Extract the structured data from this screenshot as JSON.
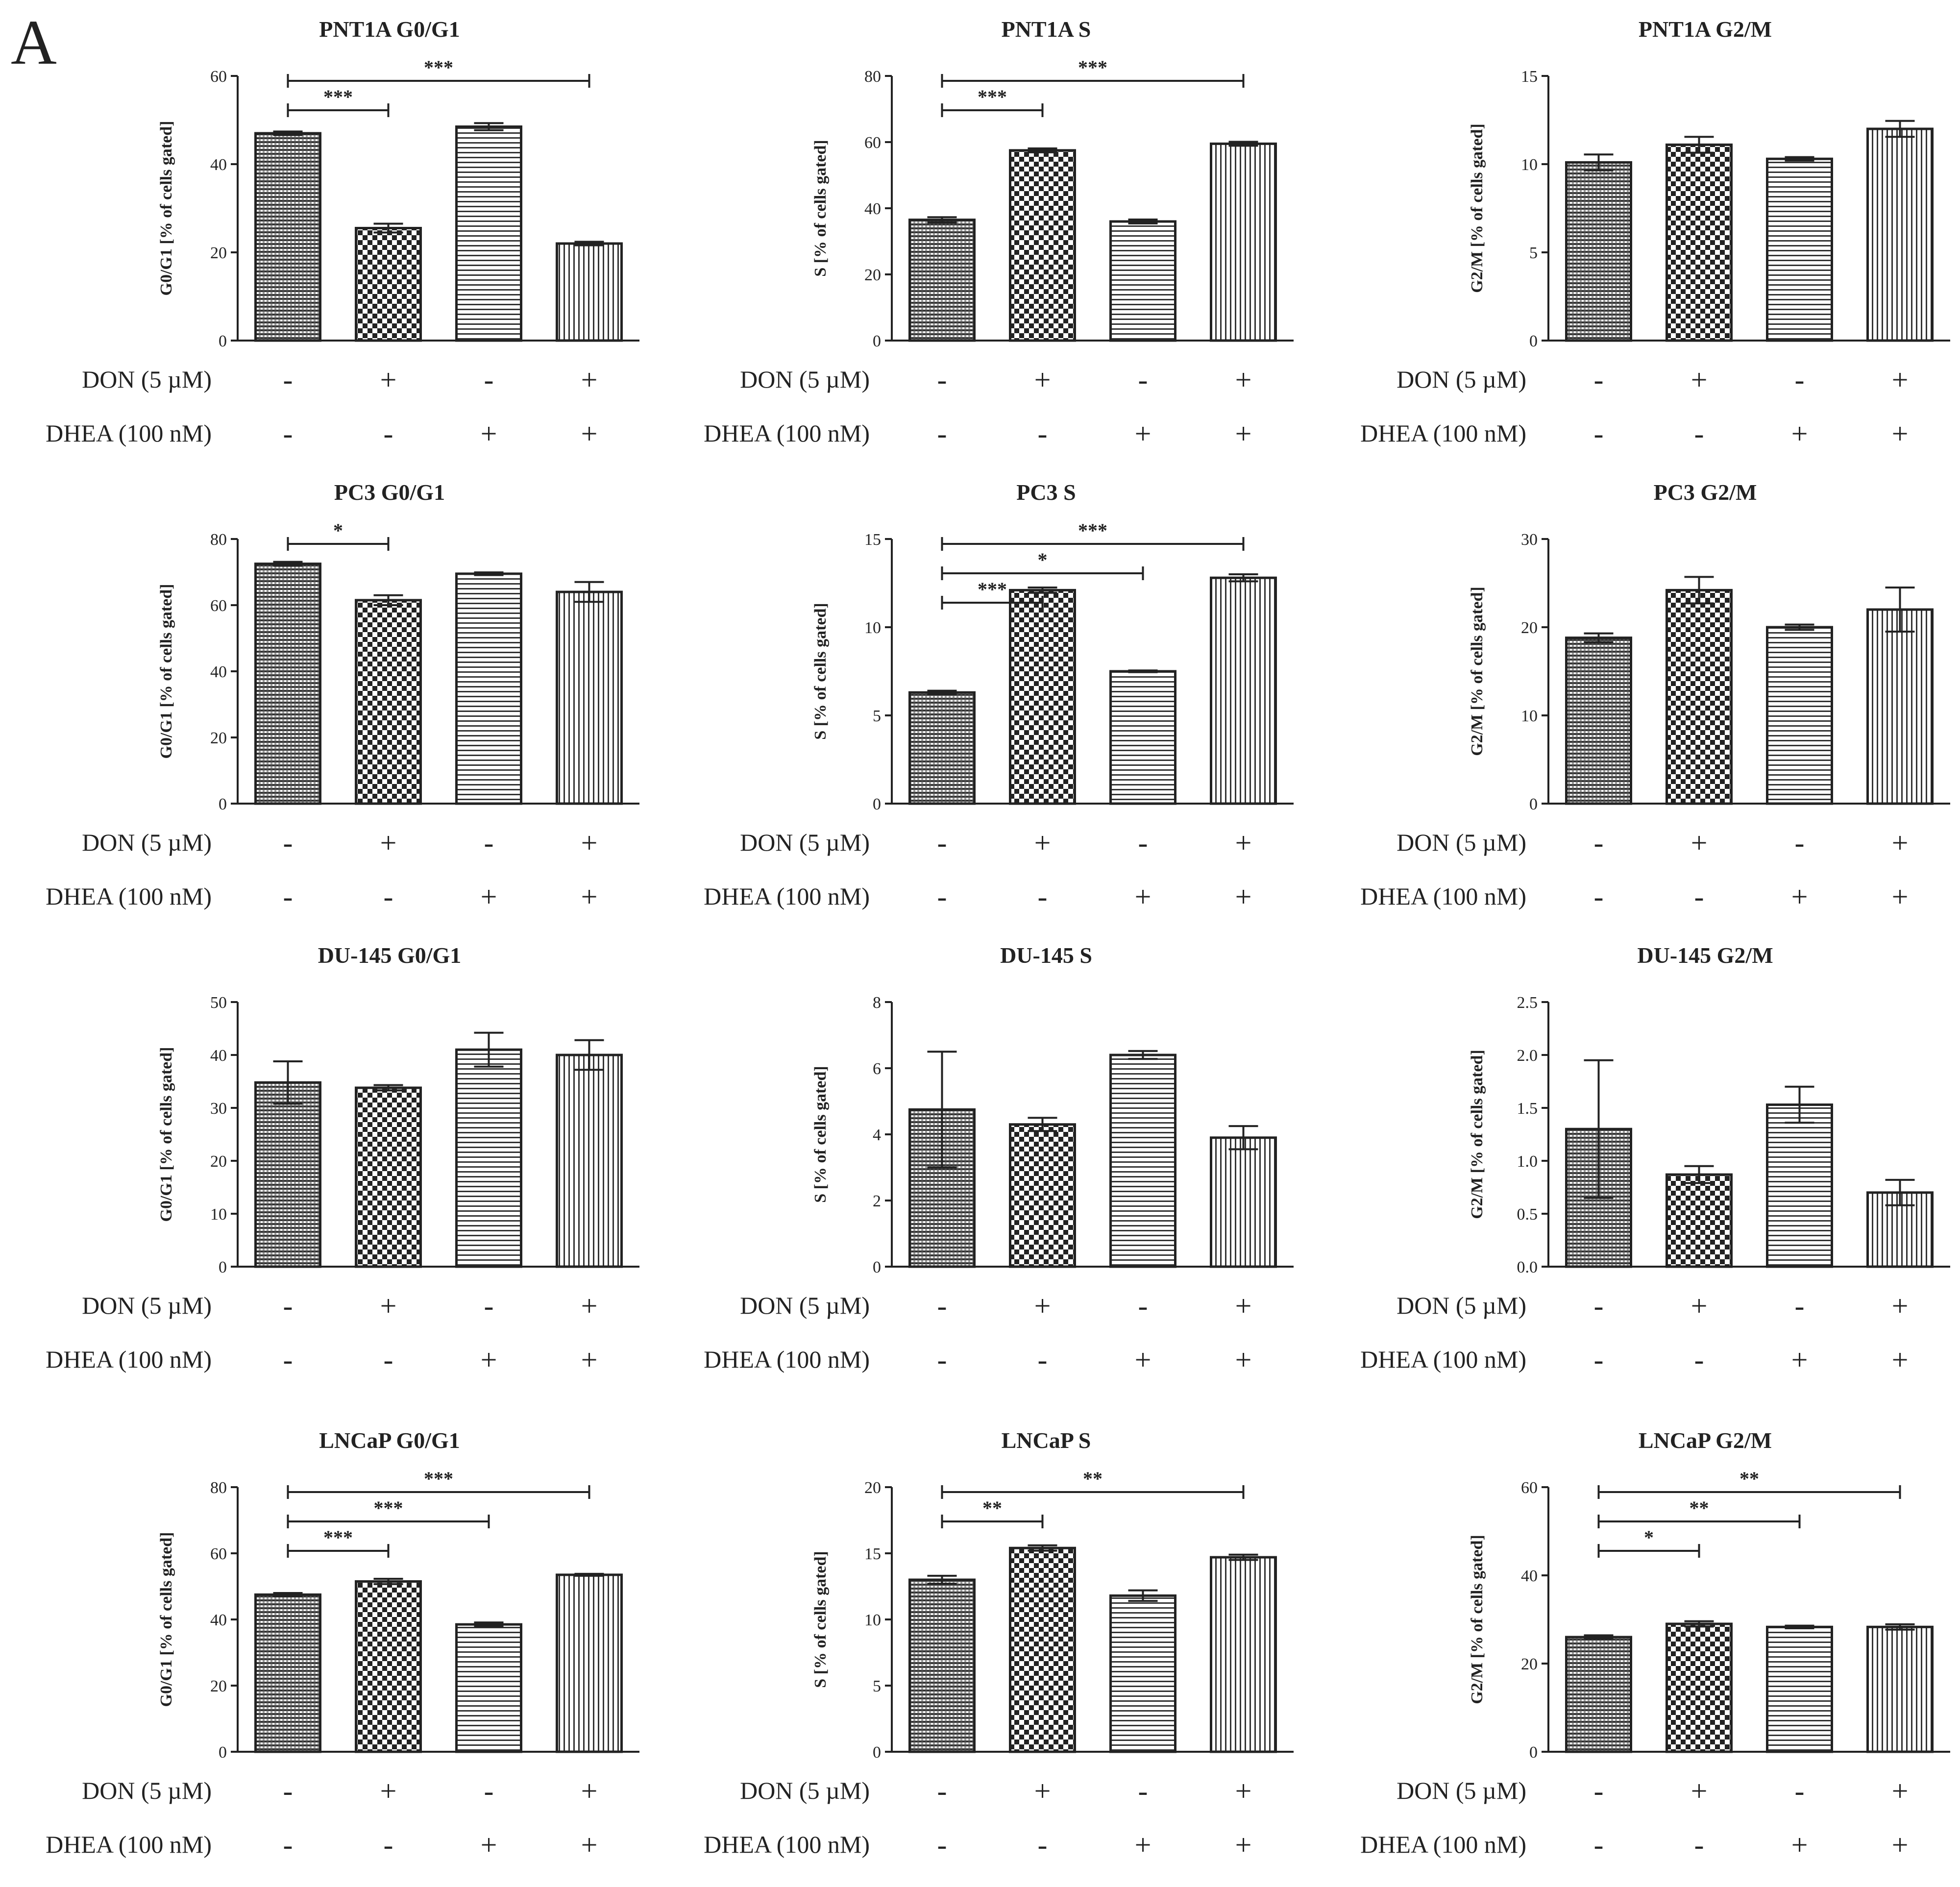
{
  "figure": {
    "panel_label": "A",
    "colors": {
      "ink": "#222222",
      "background": "#ffffff"
    }
  },
  "chart_data": [
    {
      "id": "pnt1a-g0g1",
      "type": "bar",
      "title": "PNT1A G0/G1",
      "ylabel": "G0/G1 [% of cells gated]",
      "ylim": [
        0,
        60
      ],
      "yticks": [
        "0",
        "20",
        "40",
        "60"
      ],
      "values": [
        47,
        25.5,
        48.5,
        22
      ],
      "errors": [
        0.4,
        1,
        0.8,
        0.4
      ],
      "row_labels": [
        "DON (5 µM)",
        "DHEA (100 nM)"
      ],
      "treatments": [
        [
          "-",
          "-"
        ],
        [
          "+",
          "-"
        ],
        [
          "-",
          "+"
        ],
        [
          "+",
          "+"
        ]
      ],
      "brackets": [
        {
          "from": 0,
          "to": 1,
          "label": "***"
        },
        {
          "from": 0,
          "to": 3,
          "label": "***"
        }
      ]
    },
    {
      "id": "pnt1a-s",
      "type": "bar",
      "title": "PNT1A S",
      "ylabel": "S [% of cells gated]",
      "ylim": [
        0,
        80
      ],
      "yticks": [
        "0",
        "20",
        "40",
        "60",
        "80"
      ],
      "values": [
        36.5,
        57.5,
        36,
        59.5
      ],
      "errors": [
        0.8,
        0.6,
        0.6,
        0.6
      ],
      "row_labels": [
        "DON (5 µM)",
        "DHEA (100 nM)"
      ],
      "treatments": [
        [
          "-",
          "-"
        ],
        [
          "+",
          "-"
        ],
        [
          "-",
          "+"
        ],
        [
          "+",
          "+"
        ]
      ],
      "brackets": [
        {
          "from": 0,
          "to": 1,
          "label": "***"
        },
        {
          "from": 0,
          "to": 3,
          "label": "***"
        }
      ]
    },
    {
      "id": "pnt1a-g2m",
      "type": "bar",
      "title": "PNT1A G2/M",
      "ylabel": "G2/M [% of cells gated]",
      "ylim": [
        0,
        15
      ],
      "yticks": [
        "0",
        "5",
        "10",
        "15"
      ],
      "values": [
        10.1,
        11.1,
        10.3,
        12
      ],
      "errors": [
        0.45,
        0.45,
        0.1,
        0.45
      ],
      "row_labels": [
        "DON (5 µM)",
        "DHEA (100 nM)"
      ],
      "treatments": [
        [
          "-",
          "-"
        ],
        [
          "+",
          "-"
        ],
        [
          "-",
          "+"
        ],
        [
          "+",
          "+"
        ]
      ],
      "brackets": []
    },
    {
      "id": "pc3-g0g1",
      "type": "bar",
      "title": "PC3 G0/G1",
      "ylabel": "G0/G1 [% of cells gated]",
      "ylim": [
        0,
        80
      ],
      "yticks": [
        "0",
        "20",
        "40",
        "60",
        "80"
      ],
      "values": [
        72.5,
        61.5,
        69.5,
        64
      ],
      "errors": [
        0.6,
        1.5,
        0.4,
        3
      ],
      "row_labels": [
        "DON (5 µM)",
        "DHEA (100 nM)"
      ],
      "treatments": [
        [
          "-",
          "-"
        ],
        [
          "+",
          "-"
        ],
        [
          "-",
          "+"
        ],
        [
          "+",
          "+"
        ]
      ],
      "brackets": [
        {
          "from": 0,
          "to": 1,
          "label": "*"
        }
      ]
    },
    {
      "id": "pc3-s",
      "type": "bar",
      "title": "PC3 S",
      "ylabel": "S [% of cells gated]",
      "ylim": [
        0,
        15
      ],
      "yticks": [
        "0",
        "5",
        "10",
        "15"
      ],
      "values": [
        6.3,
        12.1,
        7.5,
        12.8
      ],
      "errors": [
        0.1,
        0.15,
        0.05,
        0.2
      ],
      "row_labels": [
        "DON (5 µM)",
        "DHEA (100 nM)"
      ],
      "treatments": [
        [
          "-",
          "-"
        ],
        [
          "+",
          "-"
        ],
        [
          "-",
          "+"
        ],
        [
          "+",
          "+"
        ]
      ],
      "brackets": [
        {
          "from": 0,
          "to": 1,
          "label": "***"
        },
        {
          "from": 0,
          "to": 2,
          "label": "*"
        },
        {
          "from": 0,
          "to": 3,
          "label": "***"
        }
      ]
    },
    {
      "id": "pc3-g2m",
      "type": "bar",
      "title": "PC3 G2/M",
      "ylabel": "G2/M [% of cells gated]",
      "ylim": [
        0,
        30
      ],
      "yticks": [
        "0",
        "10",
        "20",
        "30"
      ],
      "values": [
        18.8,
        24.2,
        20,
        22
      ],
      "errors": [
        0.5,
        1.5,
        0.3,
        2.5
      ],
      "row_labels": [
        "DON (5 µM)",
        "DHEA (100 nM)"
      ],
      "treatments": [
        [
          "-",
          "-"
        ],
        [
          "+",
          "-"
        ],
        [
          "-",
          "+"
        ],
        [
          "+",
          "+"
        ]
      ],
      "brackets": []
    },
    {
      "id": "du145-g0g1",
      "type": "bar",
      "title": "DU-145 G0/G1",
      "ylabel": "G0/G1 [% of cells gated]",
      "ylim": [
        0,
        50
      ],
      "yticks": [
        "0",
        "10",
        "20",
        "30",
        "40",
        "50"
      ],
      "values": [
        34.8,
        33.8,
        41,
        40
      ],
      "errors": [
        4,
        0.5,
        3.2,
        2.8
      ],
      "row_labels": [
        "DON (5 µM)",
        "DHEA (100 nM)"
      ],
      "treatments": [
        [
          "-",
          "-"
        ],
        [
          "+",
          "-"
        ],
        [
          "-",
          "+"
        ],
        [
          "+",
          "+"
        ]
      ],
      "brackets": []
    },
    {
      "id": "du145-s",
      "type": "bar",
      "title": "DU-145 S",
      "ylabel": "S [% of cells gated]",
      "ylim": [
        0,
        8
      ],
      "yticks": [
        "0",
        "2",
        "4",
        "6",
        "8"
      ],
      "values": [
        4.75,
        4.3,
        6.4,
        3.9
      ],
      "errors": [
        1.75,
        0.2,
        0.12,
        0.35
      ],
      "row_labels": [
        "DON (5 µM)",
        "DHEA (100 nM)"
      ],
      "treatments": [
        [
          "-",
          "-"
        ],
        [
          "+",
          "-"
        ],
        [
          "-",
          "+"
        ],
        [
          "+",
          "+"
        ]
      ],
      "brackets": []
    },
    {
      "id": "du145-g2m",
      "type": "bar",
      "title": "DU-145 G2/M",
      "ylabel": "G2/M [% of cells gated]",
      "ylim": [
        0,
        2.5
      ],
      "yticks": [
        "0.0",
        "0.5",
        "1.0",
        "1.5",
        "2.0",
        "2.5"
      ],
      "values": [
        1.3,
        0.87,
        1.53,
        0.7
      ],
      "errors": [
        0.65,
        0.08,
        0.17,
        0.12
      ],
      "row_labels": [
        "DON (5 µM)",
        "DHEA (100 nM)"
      ],
      "treatments": [
        [
          "-",
          "-"
        ],
        [
          "+",
          "-"
        ],
        [
          "-",
          "+"
        ],
        [
          "+",
          "+"
        ]
      ],
      "brackets": []
    },
    {
      "id": "lncap-g0g1",
      "type": "bar",
      "title": "LNCaP G0/G1",
      "ylabel": "G0/G1 [% of cells gated]",
      "ylim": [
        0,
        80
      ],
      "yticks": [
        "0",
        "20",
        "40",
        "60",
        "80"
      ],
      "values": [
        47.5,
        51.5,
        38.5,
        53.5
      ],
      "errors": [
        0.5,
        0.8,
        0.6,
        0.3
      ],
      "row_labels": [
        "DON (5 µM)",
        "DHEA (100 nM)"
      ],
      "treatments": [
        [
          "-",
          "-"
        ],
        [
          "+",
          "-"
        ],
        [
          "-",
          "+"
        ],
        [
          "+",
          "+"
        ]
      ],
      "brackets": [
        {
          "from": 0,
          "to": 1,
          "label": "***"
        },
        {
          "from": 0,
          "to": 2,
          "label": "***"
        },
        {
          "from": 0,
          "to": 3,
          "label": "***"
        }
      ]
    },
    {
      "id": "lncap-s",
      "type": "bar",
      "title": "LNCaP S",
      "ylabel": "S [% of cells gated]",
      "ylim": [
        0,
        20
      ],
      "yticks": [
        "0",
        "5",
        "10",
        "15",
        "20"
      ],
      "values": [
        13,
        15.4,
        11.8,
        14.7
      ],
      "errors": [
        0.3,
        0.2,
        0.4,
        0.2
      ],
      "row_labels": [
        "DON (5 µM)",
        "DHEA (100 nM)"
      ],
      "treatments": [
        [
          "-",
          "-"
        ],
        [
          "+",
          "-"
        ],
        [
          "-",
          "+"
        ],
        [
          "+",
          "+"
        ]
      ],
      "brackets": [
        {
          "from": 0,
          "to": 1,
          "label": "**"
        },
        {
          "from": 0,
          "to": 3,
          "label": "**"
        }
      ]
    },
    {
      "id": "lncap-g2m",
      "type": "bar",
      "title": "LNCaP G2/M",
      "ylabel": "G2/M [% of cells gated]",
      "ylim": [
        0,
        60
      ],
      "yticks": [
        "0",
        "20",
        "40",
        "60"
      ],
      "values": [
        26,
        29,
        28.3,
        28.3
      ],
      "errors": [
        0.4,
        0.6,
        0.3,
        0.6
      ],
      "row_labels": [
        "DON (5 µM)",
        "DHEA (100 nM)"
      ],
      "treatments": [
        [
          "-",
          "-"
        ],
        [
          "+",
          "-"
        ],
        [
          "-",
          "+"
        ],
        [
          "+",
          "+"
        ]
      ],
      "brackets": [
        {
          "from": 0,
          "to": 1,
          "label": "*"
        },
        {
          "from": 0,
          "to": 2,
          "label": "**"
        },
        {
          "from": 0,
          "to": 3,
          "label": "**"
        }
      ]
    }
  ]
}
